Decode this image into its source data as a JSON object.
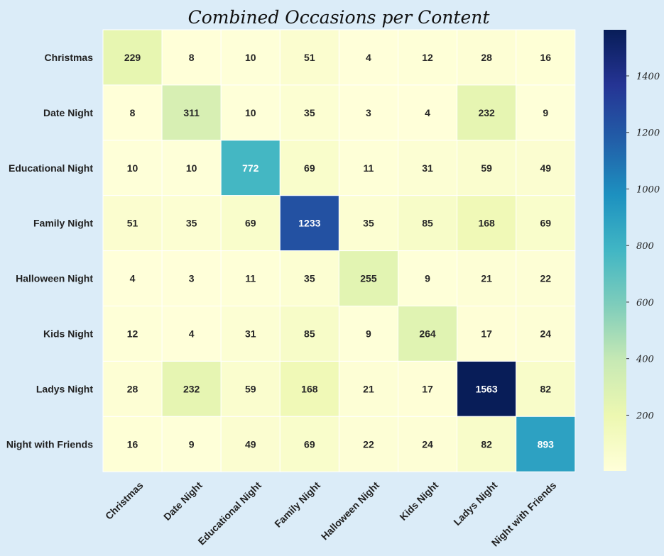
{
  "chart_data": {
    "type": "heatmap",
    "title": "Combined Occasions per Content",
    "xlabel": "",
    "ylabel": "",
    "categories": [
      "Christmas",
      "Date Night",
      "Educational Night",
      "Family Night",
      "Halloween Night",
      "Kids Night",
      "Ladys Night",
      "Night with Friends"
    ],
    "rows": [
      "Christmas",
      "Date Night",
      "Educational Night",
      "Family Night",
      "Halloween Night",
      "Kids Night",
      "Ladys Night",
      "Night with Friends"
    ],
    "values": [
      [
        229,
        8,
        10,
        51,
        4,
        12,
        28,
        16
      ],
      [
        8,
        311,
        10,
        35,
        3,
        4,
        232,
        9
      ],
      [
        10,
        10,
        772,
        69,
        11,
        31,
        59,
        49
      ],
      [
        51,
        35,
        69,
        1233,
        35,
        85,
        168,
        69
      ],
      [
        4,
        3,
        11,
        35,
        255,
        9,
        21,
        22
      ],
      [
        12,
        4,
        31,
        85,
        9,
        264,
        17,
        24
      ],
      [
        28,
        232,
        59,
        168,
        21,
        17,
        1563,
        82
      ],
      [
        16,
        9,
        49,
        69,
        22,
        24,
        82,
        893
      ]
    ],
    "colorbar": {
      "min": 3,
      "max": 1563,
      "ticks": [
        200,
        400,
        600,
        800,
        1000,
        1200,
        1400
      ],
      "colormap": "YlGnBu"
    },
    "grid": false,
    "legend": "colorbar-right"
  },
  "colors": {
    "background": "#dbecf8",
    "cell_border": "#ffffff",
    "label_text": "#222222",
    "title_text": "#111111"
  }
}
